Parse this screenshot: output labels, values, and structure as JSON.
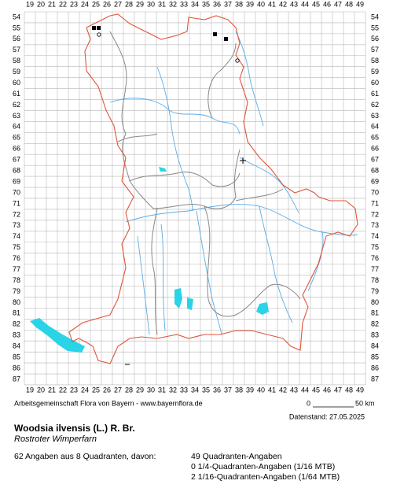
{
  "grid": {
    "columns": [
      19,
      20,
      21,
      22,
      23,
      24,
      25,
      26,
      27,
      28,
      29,
      30,
      31,
      32,
      33,
      34,
      35,
      36,
      37,
      38,
      39,
      40,
      41,
      42,
      43,
      44,
      45,
      46,
      47,
      48,
      49
    ],
    "rows": [
      54,
      55,
      56,
      57,
      58,
      59,
      60,
      61,
      62,
      63,
      64,
      65,
      66,
      67,
      68,
      69,
      70,
      71,
      72,
      73,
      74,
      75,
      76,
      77,
      78,
      79,
      80,
      81,
      82,
      83,
      84,
      85,
      86,
      87
    ]
  },
  "footer": {
    "credit": "Arbeitsgemeinschaft Flora von Bayern - www.bayernflora.de",
    "scale_start": "0",
    "scale_end": "50 km",
    "date": "Datenstand: 27.05.2025"
  },
  "species": {
    "scientific_name": "Woodsia ilvensis (L.) R. Br.",
    "common_name": "Rostroter Wimperfarn"
  },
  "statistics": {
    "summary": "62 Angaben aus 8 Quadranten, davon:",
    "details": [
      "49 Quadranten-Angaben",
      "0 1/4-Quadranten-Angaben (1/16 MTB)",
      "2 1/16-Quadranten-Angaben (1/64 MTB)"
    ]
  }
}
